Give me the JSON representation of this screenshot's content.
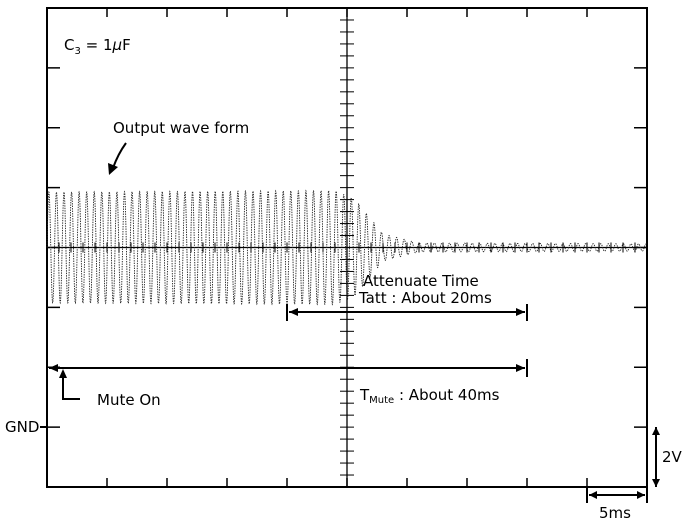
{
  "chart_data": {
    "type": "line",
    "title": "",
    "xlabel": "",
    "ylabel": "",
    "capacitor_label": "C",
    "capacitor_sub": "3",
    "capacitor_value": " = 1",
    "capacitor_unit_mu": "μ",
    "capacitor_unit_f": "F",
    "grid": {
      "x_divisions": 10,
      "y_divisions": 8,
      "center_ticks": true
    },
    "series": [
      {
        "description": "Output wave form",
        "x_ms": [
          0,
          24,
          25.7,
          28,
          31,
          50
        ],
        "envelope_amplitude_V": [
          1.85,
          1.9,
          1.6,
          0.45,
          0.15,
          0.12
        ],
        "offset_V": 0,
        "baseline_level_div": 6
      }
    ],
    "annotations": {
      "output_wave": "Output wave form",
      "attenuate_line1": "Attenuate Time",
      "attenuate_line2": "Tatt : About 20ms",
      "attenuate_range_ms": [
        20,
        40
      ],
      "mute_on": "Mute On",
      "mute_prefix": "T",
      "mute_sub": "Mute",
      "mute_suffix": " : About 40ms",
      "mute_range_ms": [
        0,
        40
      ],
      "gnd": "GND"
    },
    "scale": {
      "volts_per_div": "2V",
      "time_per_div": "5ms"
    }
  }
}
